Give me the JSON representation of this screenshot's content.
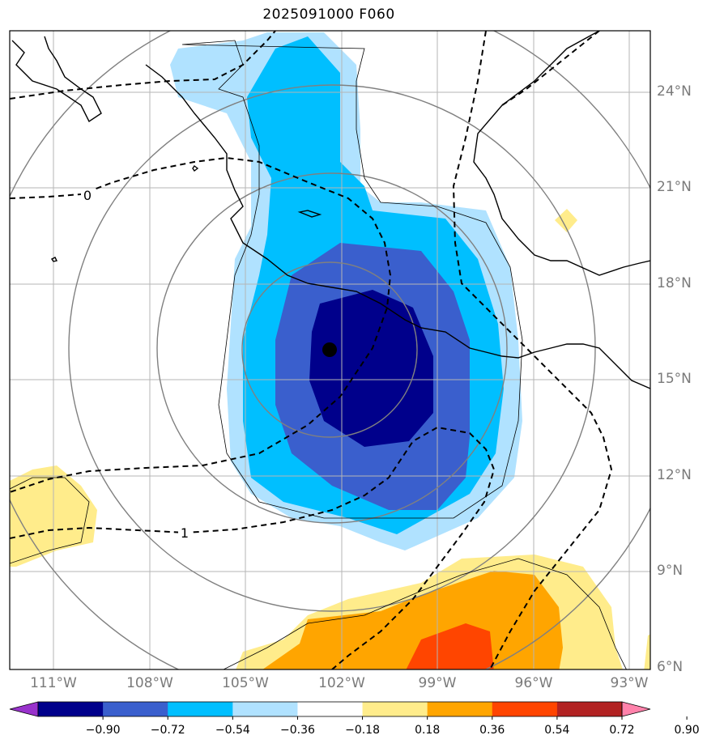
{
  "title": "2025091000 F060",
  "lon_labels": [
    "111°W",
    "108°W",
    "105°W",
    "102°W",
    "99°W",
    "96°W",
    "93°W"
  ],
  "lat_labels": [
    "24°N",
    "21°N",
    "18°N",
    "15°N",
    "12°N",
    "9°N",
    "6°N"
  ],
  "contour_labels": [
    "0",
    "1"
  ],
  "colorbar": {
    "levels": [
      "−0.90",
      "−0.72",
      "−0.54",
      "−0.36",
      "−0.18",
      "0.18",
      "0.36",
      "0.54",
      "0.72",
      "0.90"
    ],
    "colors": [
      "#9932CC",
      "#00008B",
      "#3A5FCD",
      "#00BFFF",
      "#B0E2FF",
      "#FFFFFF",
      "#FFEC8B",
      "#FFA500",
      "#FF4500",
      "#B22222",
      "#FF82AB"
    ]
  },
  "center_marker": "storm-center-dot"
}
